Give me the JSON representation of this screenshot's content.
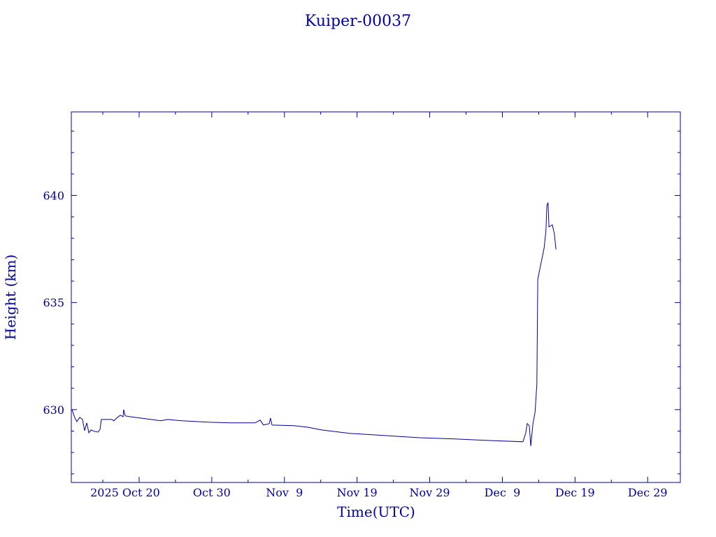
{
  "colors": {
    "ink": "#0000a0",
    "background": "#ffffff"
  },
  "chart_data": {
    "type": "line",
    "title": "Kuiper-00037",
    "xlabel": "Time(UTC)",
    "ylabel": "Height (km)",
    "xlim": [
      "2025-10-10T16:00Z",
      "2026-01-02T12:00Z"
    ],
    "ylim": [
      626.6,
      643.9
    ],
    "grid": false,
    "x_ticks": [
      {
        "date": "2025-10-20T00:00Z",
        "label": "2025 Oct 20"
      },
      {
        "date": "2025-10-30T00:00Z",
        "label": "Oct 30"
      },
      {
        "date": "2025-11-09T00:00Z",
        "label": "Nov  9"
      },
      {
        "date": "2025-11-19T00:00Z",
        "label": "Nov 19"
      },
      {
        "date": "2025-11-29T00:00Z",
        "label": "Nov 29"
      },
      {
        "date": "2025-12-09T00:00Z",
        "label": "Dec  9"
      },
      {
        "date": "2025-12-19T00:00Z",
        "label": "Dec 19"
      },
      {
        "date": "2025-12-29T00:00Z",
        "label": "Dec 29"
      }
    ],
    "x_minor_step_days": 5,
    "y_ticks": [
      630,
      635,
      640
    ],
    "y_minor_step": 1,
    "series": [
      {
        "x": [
          "2025-10-10T18:00Z",
          "2025-10-11T04:00Z",
          "2025-10-11T10:00Z",
          "2025-10-11T20:00Z",
          "2025-10-12T05:00Z",
          "2025-10-12T12:00Z",
          "2025-10-12T19:00Z",
          "2025-10-13T02:00Z",
          "2025-10-13T09:00Z",
          "2025-10-13T20:00Z",
          "2025-10-14T08:00Z",
          "2025-10-14T15:00Z",
          "2025-10-14T19:00Z",
          "2025-10-16T06:00Z",
          "2025-10-16T13:00Z",
          "2025-10-16T22:00Z",
          "2025-10-17T10:00Z",
          "2025-10-17T19:00Z",
          "2025-10-17T21:00Z",
          "2025-10-18T02:00Z",
          "2025-10-18T16:00Z",
          "2025-10-20T02:00Z",
          "2025-10-23T00:00Z",
          "2025-10-23T23:00Z",
          "2025-10-25T21:00Z",
          "2025-10-29T17:00Z",
          "2025-11-01T15:00Z",
          "2025-11-04T23:00Z",
          "2025-11-05T16:00Z",
          "2025-11-06T03:00Z",
          "2025-11-06T22:00Z",
          "2025-11-07T02:00Z",
          "2025-11-07T07:00Z",
          "2025-11-10T06:00Z",
          "2025-11-12T05:00Z",
          "2025-11-14T03:00Z",
          "2025-11-17T23:00Z",
          "2025-11-22T19:00Z",
          "2025-11-27T14:00Z",
          "2025-12-02T10:00Z",
          "2025-12-07T05:00Z",
          "2025-12-11T20:00Z",
          "2025-12-12T05:00Z",
          "2025-12-12T10:00Z",
          "2025-12-12T17:00Z",
          "2025-12-12T22:00Z",
          "2025-12-13T05:00Z",
          "2025-12-13T12:00Z",
          "2025-12-13T18:00Z",
          "2025-12-13T21:00Z",
          "2025-12-14T04:00Z",
          "2025-12-14T11:00Z",
          "2025-12-14T18:00Z",
          "2025-12-15T00:00Z",
          "2025-12-15T03:00Z",
          "2025-12-15T07:00Z",
          "2025-12-15T10:00Z",
          "2025-12-15T21:00Z",
          "2025-12-16T04:00Z",
          "2025-12-16T09:00Z"
        ],
        "y": [
          630.0,
          629.61,
          629.44,
          629.64,
          629.54,
          629.02,
          629.38,
          628.92,
          629.05,
          628.99,
          628.95,
          629.08,
          629.54,
          629.54,
          629.48,
          629.61,
          629.74,
          629.67,
          630.0,
          629.71,
          629.67,
          629.61,
          629.48,
          629.54,
          629.48,
          629.41,
          629.38,
          629.38,
          629.51,
          629.28,
          629.35,
          629.61,
          629.28,
          629.25,
          629.18,
          629.05,
          628.89,
          628.79,
          628.69,
          628.63,
          628.56,
          628.5,
          628.89,
          629.35,
          629.25,
          628.3,
          629.35,
          629.87,
          631.18,
          636.08,
          636.57,
          637.06,
          637.55,
          638.37,
          639.51,
          639.67,
          638.53,
          638.63,
          638.2,
          637.48
        ]
      }
    ]
  }
}
